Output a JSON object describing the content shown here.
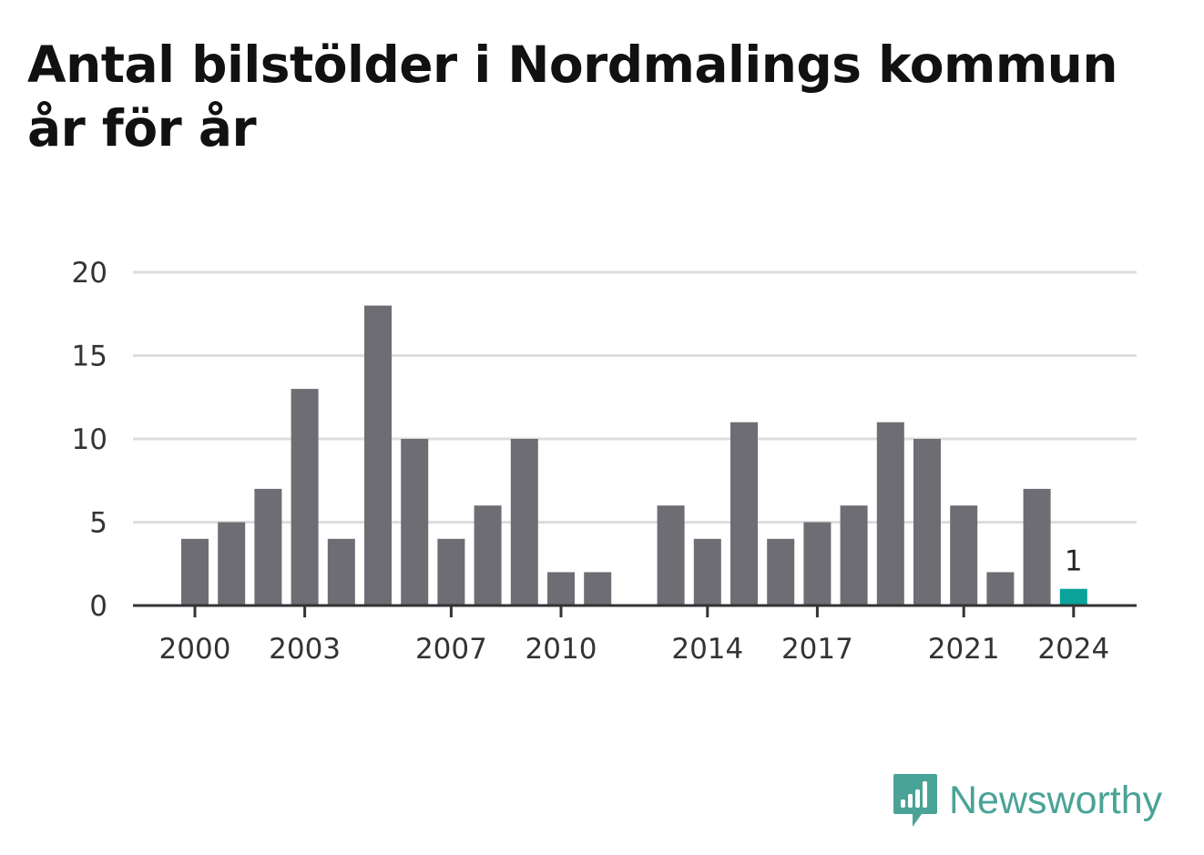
{
  "title": "Antal bilstölder i Nordmalings kommun år för år",
  "brand": {
    "name": "Newsworthy",
    "icon": "newsworthy-logo-icon",
    "color": "#4aa397"
  },
  "colors": {
    "bar": "#6e6d73",
    "highlight": "#0aa39a",
    "grid": "#dddddd",
    "axis": "#333333"
  },
  "chart_data": {
    "type": "bar",
    "title": "Antal bilstölder i Nordmalings kommun år för år",
    "xlabel": "",
    "ylabel": "",
    "ylim": [
      0,
      20
    ],
    "yticks": [
      0,
      5,
      10,
      15,
      20
    ],
    "grid": true,
    "xtick_labels": [
      "2000",
      "2003",
      "2007",
      "2010",
      "2014",
      "2017",
      "2021",
      "2024"
    ],
    "categories": [
      "2000",
      "2001",
      "2002",
      "2003",
      "2004",
      "2005",
      "2006",
      "2007",
      "2008",
      "2009",
      "2010",
      "2011",
      "2012",
      "2013",
      "2014",
      "2015",
      "2016",
      "2017",
      "2018",
      "2019",
      "2020",
      "2021",
      "2022",
      "2023",
      "2024"
    ],
    "values": [
      4,
      5,
      7,
      13,
      4,
      18,
      10,
      4,
      6,
      10,
      2,
      2,
      0,
      6,
      4,
      11,
      4,
      5,
      6,
      11,
      10,
      6,
      2,
      7,
      1
    ],
    "highlight": {
      "category": "2024",
      "label": "1"
    }
  }
}
